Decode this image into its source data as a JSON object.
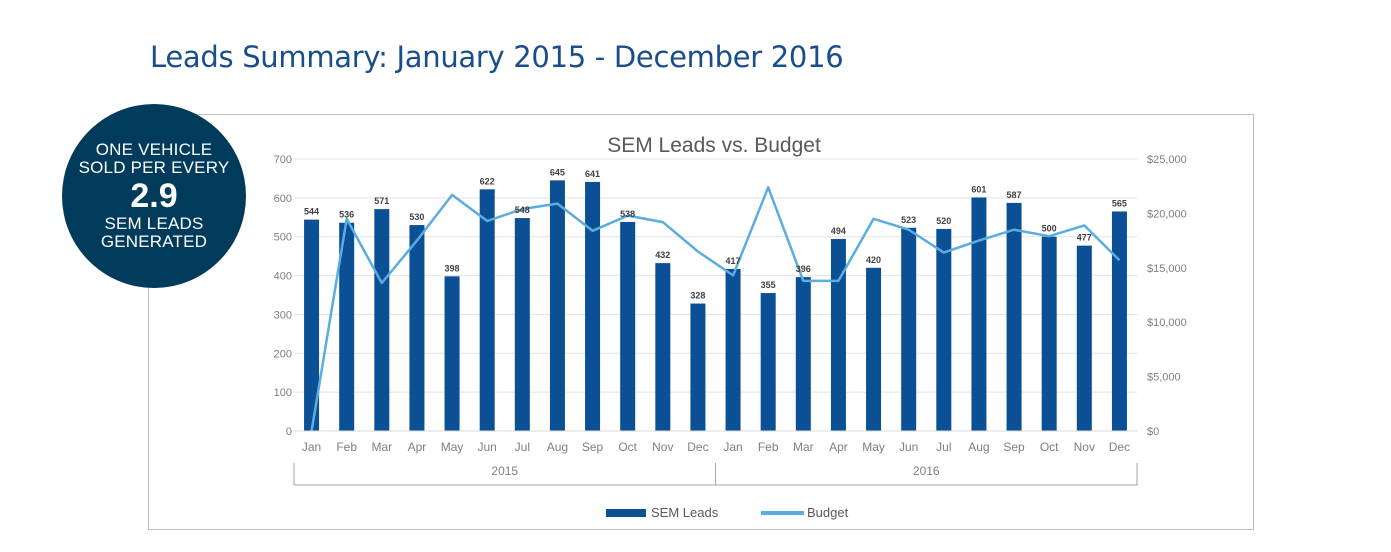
{
  "page": {
    "title": "Leads Summary: January 2015 - December 2016"
  },
  "callout": {
    "line1": "ONE  VEHICLE",
    "line2": "SOLD PER EVERY",
    "value": "2.9",
    "line3": "SEM LEADS",
    "line4": "GENERATED"
  },
  "colors": {
    "title": "#1a4d8c",
    "bars": "#0b4f95",
    "line": "#5aaddf",
    "callout": "#003b5c",
    "text": "#595959"
  },
  "chart_data": {
    "type": "bar",
    "title": "SEM Leads vs. Budget",
    "categories": [
      "Jan",
      "Feb",
      "Mar",
      "Apr",
      "May",
      "Jun",
      "Jul",
      "Aug",
      "Sep",
      "Oct",
      "Nov",
      "Dec",
      "Jan",
      "Feb",
      "Mar",
      "Apr",
      "May",
      "Jun",
      "Jul",
      "Aug",
      "Sep",
      "Oct",
      "Nov",
      "Dec"
    ],
    "groups": [
      {
        "label": "2015",
        "count": 12
      },
      {
        "label": "2016",
        "count": 12
      }
    ],
    "series": [
      {
        "name": "SEM Leads",
        "type": "bar",
        "axis": "left",
        "values": [
          544,
          536,
          571,
          530,
          398,
          622,
          548,
          645,
          641,
          538,
          432,
          328,
          417,
          355,
          396,
          494,
          420,
          523,
          520,
          601,
          587,
          500,
          477,
          565
        ]
      },
      {
        "name": "Budget",
        "type": "line",
        "axis": "right",
        "values": [
          0,
          19500,
          13600,
          17500,
          21700,
          19300,
          20400,
          20900,
          18400,
          19800,
          19200,
          16500,
          14300,
          22400,
          13800,
          13800,
          19500,
          18500,
          16400,
          17500,
          18500,
          17900,
          18900,
          15700
        ]
      }
    ],
    "y_left": {
      "min": 0,
      "max": 700,
      "ticks": [
        "0",
        "100",
        "200",
        "300",
        "400",
        "500",
        "600",
        "700"
      ]
    },
    "y_right": {
      "min": 0,
      "max": 25000,
      "ticks": [
        "$0",
        "$5,000",
        "$10,000",
        "$15,000",
        "$20,000",
        "$25,000"
      ]
    },
    "grid": true,
    "legend_position": "bottom"
  }
}
